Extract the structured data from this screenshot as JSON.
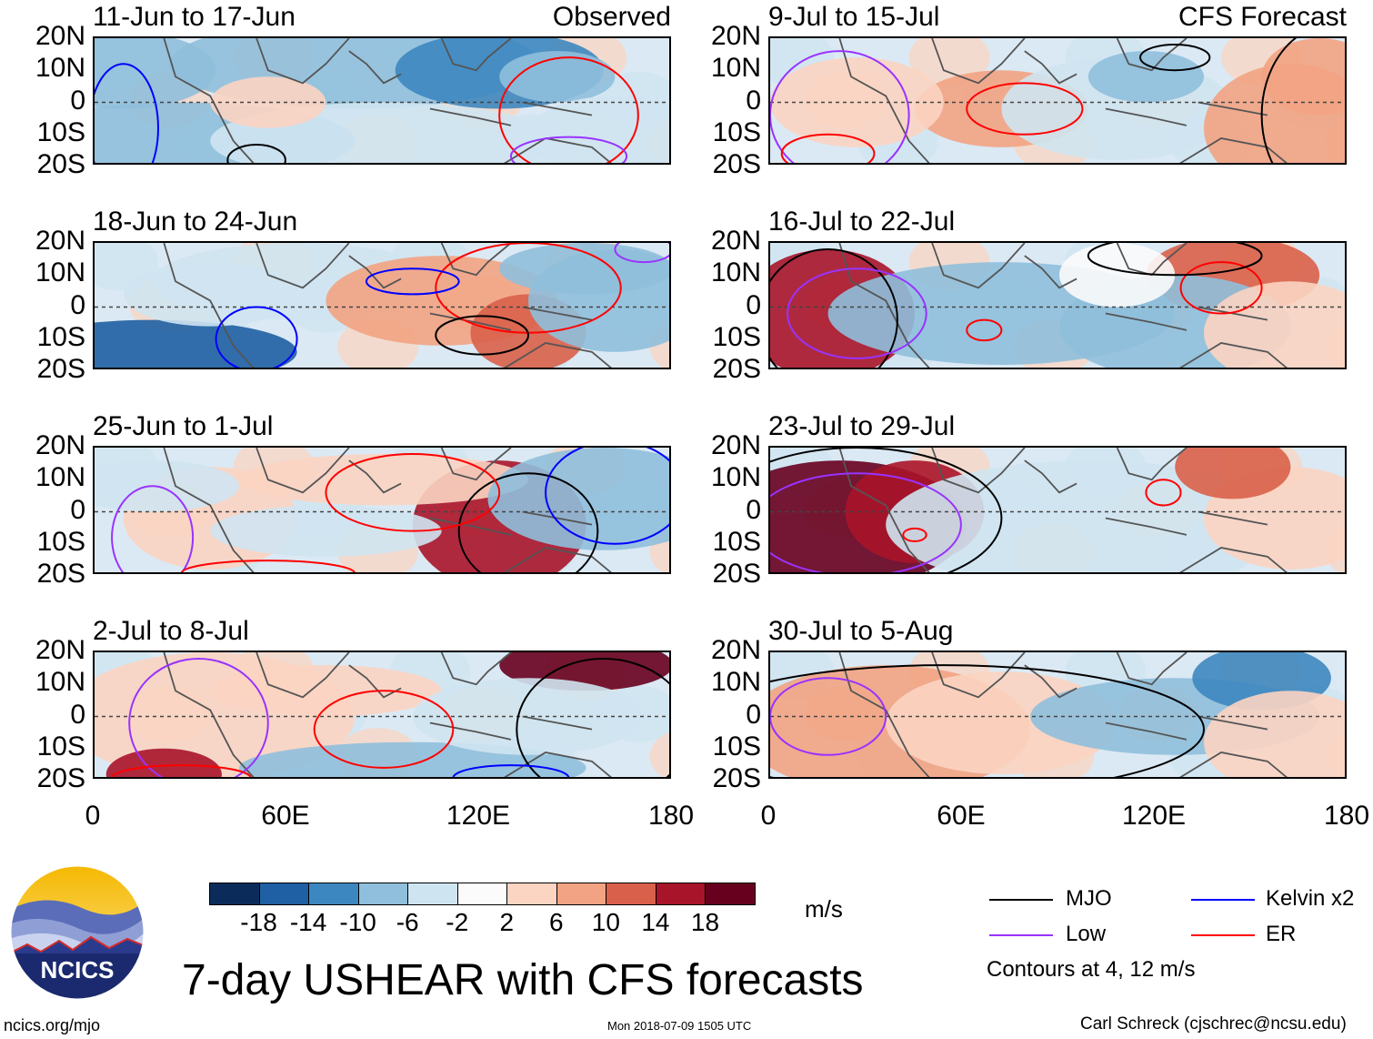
{
  "title": "7-day USHEAR with CFS forecasts",
  "column_headers": {
    "observed": "Observed",
    "forecast": "CFS Forecast"
  },
  "axes": {
    "y_ticks": [
      "20N",
      "10N",
      "0",
      "10S",
      "20S"
    ],
    "x_ticks": [
      "0",
      "60E",
      "120E",
      "180"
    ]
  },
  "panels": {
    "observed": [
      {
        "period": "11-Jun to 17-Jun"
      },
      {
        "period": "18-Jun to 24-Jun"
      },
      {
        "period": "25-Jun to 1-Jul"
      },
      {
        "period": "2-Jul to 8-Jul"
      }
    ],
    "forecast": [
      {
        "period": "9-Jul to 15-Jul"
      },
      {
        "period": "16-Jul to 22-Jul"
      },
      {
        "period": "23-Jul to 29-Jul"
      },
      {
        "period": "30-Jul to 5-Aug"
      }
    ]
  },
  "colorbar": {
    "units": "m/s",
    "labels": [
      "-18",
      "-14",
      "-10",
      "-6",
      "-2",
      "2",
      "6",
      "10",
      "14",
      "18"
    ],
    "colors": [
      "#0b2c5a",
      "#1f5fa3",
      "#3d87c0",
      "#8fbfdc",
      "#cfe4f1",
      "#fbfbfb",
      "#fbd4c2",
      "#f2a383",
      "#d9604a",
      "#a8142a",
      "#67001f"
    ]
  },
  "legend": {
    "items": [
      {
        "label": "MJO",
        "color": "#000000"
      },
      {
        "label": "Kelvin x2",
        "color": "#0000ff"
      },
      {
        "label": "Low",
        "color": "#9933ff"
      },
      {
        "label": "ER",
        "color": "#ff0000"
      }
    ],
    "note": "Contours at 4, 12 m/s"
  },
  "logo": {
    "text": "NCICS"
  },
  "footer": {
    "website": "ncics.org/mjo",
    "timestamp": "Mon 2018-07-09 1505 UTC",
    "credit": "Carl Schreck (cjschrec@ncsu.edu)"
  }
}
